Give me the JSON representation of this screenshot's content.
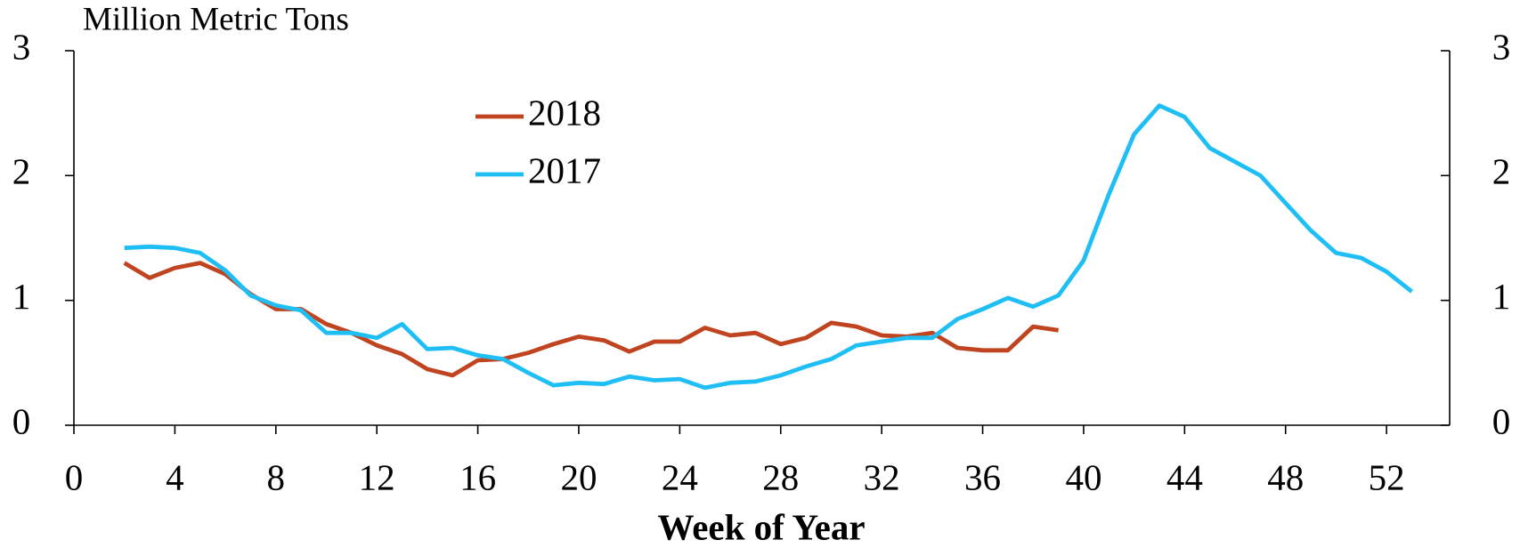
{
  "chart_data": {
    "type": "line",
    "ylabel": "Million Metric Tons",
    "xlabel": "Week of Year",
    "x": [
      2,
      3,
      4,
      5,
      6,
      7,
      8,
      9,
      10,
      11,
      12,
      13,
      14,
      15,
      16,
      17,
      18,
      19,
      20,
      21,
      22,
      23,
      24,
      25,
      26,
      27,
      28,
      29,
      30,
      31,
      32,
      33,
      34,
      35,
      36,
      37,
      38,
      39,
      40,
      41,
      42,
      43,
      44,
      45,
      46,
      47,
      48,
      49,
      50,
      51,
      52,
      53
    ],
    "series": [
      {
        "name": "2018",
        "color": "#c0441f",
        "values": [
          1.3,
          1.18,
          1.26,
          1.3,
          1.21,
          1.05,
          0.93,
          0.93,
          0.81,
          0.74,
          0.64,
          0.57,
          0.45,
          0.4,
          0.52,
          0.53,
          0.58,
          0.65,
          0.71,
          0.68,
          0.59,
          0.67,
          0.67,
          0.78,
          0.72,
          0.74,
          0.65,
          0.7,
          0.82,
          0.79,
          0.72,
          0.71,
          0.74,
          0.62,
          0.6,
          0.6,
          0.79,
          0.76,
          null,
          null,
          null,
          null,
          null,
          null,
          null,
          null,
          null,
          null,
          null,
          null,
          null,
          null
        ]
      },
      {
        "name": "2017",
        "color": "#1fbff5",
        "values": [
          1.42,
          1.43,
          1.42,
          1.38,
          1.24,
          1.04,
          0.96,
          0.92,
          0.74,
          0.74,
          0.7,
          0.81,
          0.61,
          0.62,
          0.56,
          0.53,
          0.42,
          0.32,
          0.34,
          0.33,
          0.39,
          0.36,
          0.37,
          0.3,
          0.34,
          0.35,
          0.4,
          0.47,
          0.53,
          0.64,
          0.67,
          0.7,
          0.7,
          0.85,
          0.93,
          1.02,
          0.95,
          1.04,
          1.32,
          1.85,
          2.33,
          2.56,
          2.47,
          2.22,
          2.11,
          2.0,
          1.78,
          1.56,
          1.38,
          1.34,
          1.23,
          1.07
        ]
      }
    ],
    "xlim": [
      0,
      54.5
    ],
    "xticks": [
      0,
      4,
      8,
      12,
      16,
      20,
      24,
      28,
      32,
      36,
      40,
      44,
      48,
      52
    ],
    "ylim": [
      0,
      3
    ],
    "yticks": [
      0,
      1,
      2,
      3
    ],
    "y2lim": [
      0,
      3
    ],
    "y2ticks": [
      0,
      1,
      2,
      3
    ],
    "grid": false,
    "legend": "top-left"
  }
}
